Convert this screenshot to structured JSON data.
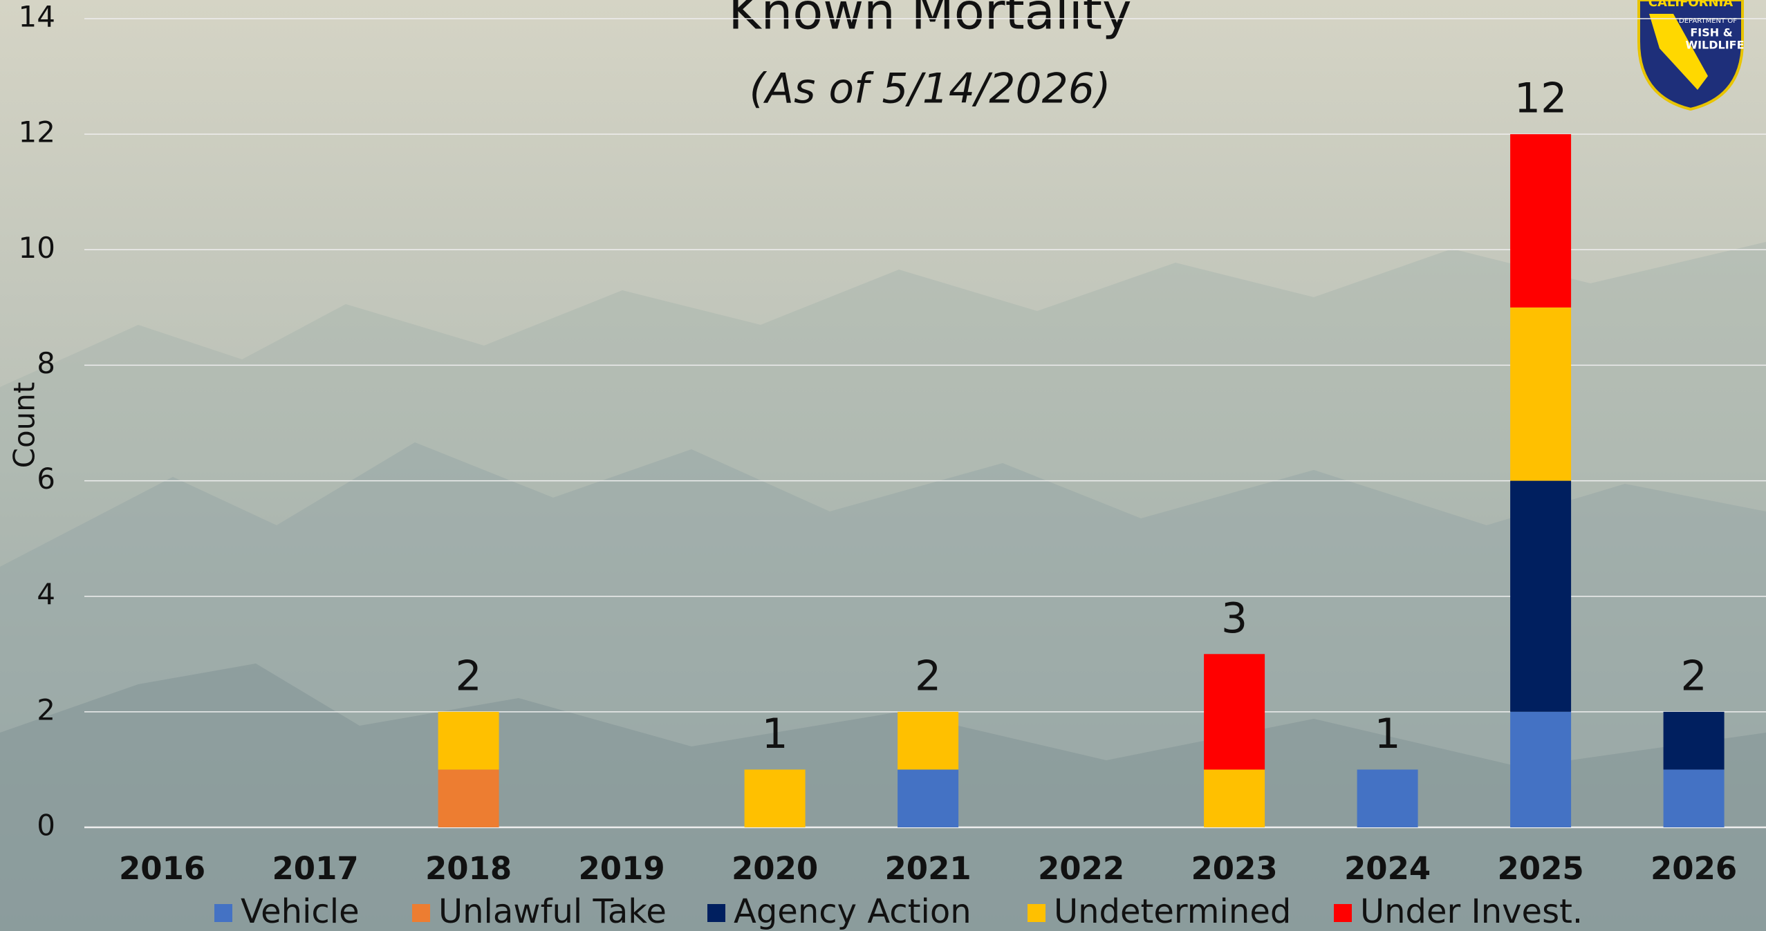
{
  "chart_data": {
    "type": "stacked-bar",
    "title": "Known Mortality",
    "subtitle": "(As of 5/14/2026)",
    "y_label": "Count",
    "categories": [
      "2016",
      "2017",
      "2018",
      "2019",
      "2020",
      "2021",
      "2022",
      "2023",
      "2024",
      "2025",
      "2026"
    ],
    "series": [
      {
        "name": "Vehicle",
        "color": "#4472c4",
        "values": [
          0,
          0,
          0,
          0,
          0,
          1,
          0,
          0,
          1,
          2,
          1
        ]
      },
      {
        "name": "Unlawful Take",
        "color": "#ed7d31",
        "values": [
          0,
          0,
          1,
          0,
          0,
          0,
          0,
          0,
          0,
          0,
          0
        ]
      },
      {
        "name": "Agency Action",
        "color": "#001f5f",
        "values": [
          0,
          0,
          0,
          0,
          0,
          0,
          0,
          0,
          0,
          4,
          1
        ]
      },
      {
        "name": "Undetermined",
        "color": "#ffc000",
        "values": [
          0,
          0,
          1,
          0,
          1,
          1,
          0,
          1,
          0,
          3,
          0
        ]
      },
      {
        "name": "Under Invest.",
        "color": "#ff0000",
        "values": [
          0,
          0,
          0,
          0,
          0,
          0,
          0,
          2,
          0,
          3,
          0
        ]
      }
    ],
    "totals": [
      null,
      null,
      2,
      null,
      1,
      2,
      null,
      3,
      1,
      12,
      2
    ],
    "ylim": [
      0,
      14
    ],
    "yticks": [
      0,
      2,
      4,
      6,
      8,
      10,
      12,
      14
    ],
    "grid": true,
    "legend": "bottom",
    "logo": {
      "line1": "CALIFORNIA",
      "line2": "DEPARTMENT OF",
      "line3": "FISH &",
      "line4": "WILDLIFE"
    }
  }
}
